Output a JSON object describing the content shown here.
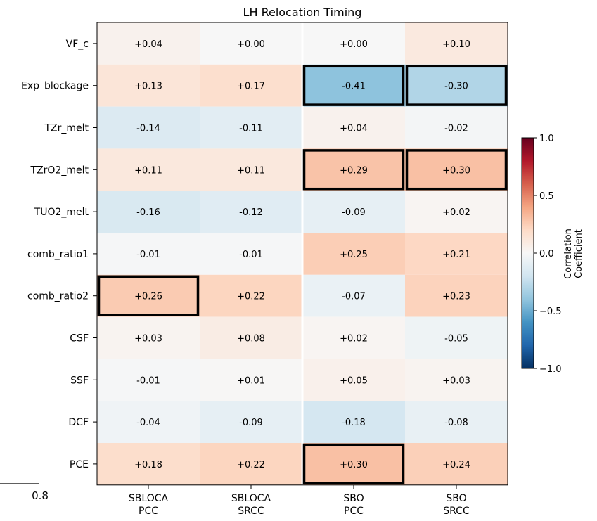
{
  "chart_data": {
    "type": "heatmap",
    "title": "LH Relocation Timing",
    "rows": [
      "VF_c",
      "Exp_blockage",
      "TZr_melt",
      "TZrO2_melt",
      "TUO2_melt",
      "comb_ratio1",
      "comb_ratio2",
      "CSF",
      "SSF",
      "DCF",
      "PCE"
    ],
    "columns": [
      {
        "line1": "SBLOCA",
        "line2": "PCC"
      },
      {
        "line1": "SBLOCA",
        "line2": "SRCC"
      },
      {
        "line1": "SBO",
        "line2": "PCC"
      },
      {
        "line1": "SBO",
        "line2": "SRCC"
      }
    ],
    "values": [
      [
        0.04,
        0.0,
        0.0,
        0.1
      ],
      [
        0.13,
        0.17,
        -0.41,
        -0.3
      ],
      [
        -0.14,
        -0.11,
        0.04,
        -0.02
      ],
      [
        0.11,
        0.11,
        0.29,
        0.3
      ],
      [
        -0.16,
        -0.12,
        -0.09,
        0.02
      ],
      [
        -0.01,
        -0.01,
        0.25,
        0.21
      ],
      [
        0.26,
        0.22,
        -0.07,
        0.23
      ],
      [
        0.03,
        0.08,
        0.02,
        -0.05
      ],
      [
        -0.01,
        0.01,
        0.05,
        0.03
      ],
      [
        -0.04,
        -0.09,
        -0.18,
        -0.08
      ],
      [
        0.18,
        0.22,
        0.3,
        0.24
      ]
    ],
    "value_labels": [
      [
        "+0.04",
        "+0.00",
        "+0.00",
        "+0.10"
      ],
      [
        "+0.13",
        "+0.17",
        "-0.41",
        "-0.30"
      ],
      [
        "-0.14",
        "-0.11",
        "+0.04",
        "-0.02"
      ],
      [
        "+0.11",
        "+0.11",
        "+0.29",
        "+0.30"
      ],
      [
        "-0.16",
        "-0.12",
        "-0.09",
        "+0.02"
      ],
      [
        "-0.01",
        "-0.01",
        "+0.25",
        "+0.21"
      ],
      [
        "+0.26",
        "+0.22",
        "-0.07",
        "+0.23"
      ],
      [
        "+0.03",
        "+0.08",
        "+0.02",
        "-0.05"
      ],
      [
        "-0.01",
        "+0.01",
        "+0.05",
        "+0.03"
      ],
      [
        "-0.04",
        "-0.09",
        "-0.18",
        "-0.08"
      ],
      [
        "+0.18",
        "+0.22",
        "+0.30",
        "+0.24"
      ]
    ],
    "highlighted": [
      [
        1,
        2
      ],
      [
        1,
        3
      ],
      [
        3,
        2
      ],
      [
        3,
        3
      ],
      [
        6,
        0
      ],
      [
        10,
        2
      ]
    ],
    "colormap": "RdBu_r",
    "vmin": -1.0,
    "vmax": 1.0,
    "colorbar": {
      "label_line1": "Correlation",
      "label_line2": "Coefficient",
      "ticks": [
        1.0,
        0.5,
        0.0,
        -0.5,
        -1.0
      ],
      "tick_labels": [
        "1.0",
        "0.5",
        "0.0",
        "−0.5",
        "−1.0"
      ]
    },
    "colors": {
      "negative_end": "#053061",
      "neutral": "#f7f7f7",
      "positive_end": "#67001f"
    }
  },
  "fragment": {
    "label": "0.8"
  }
}
